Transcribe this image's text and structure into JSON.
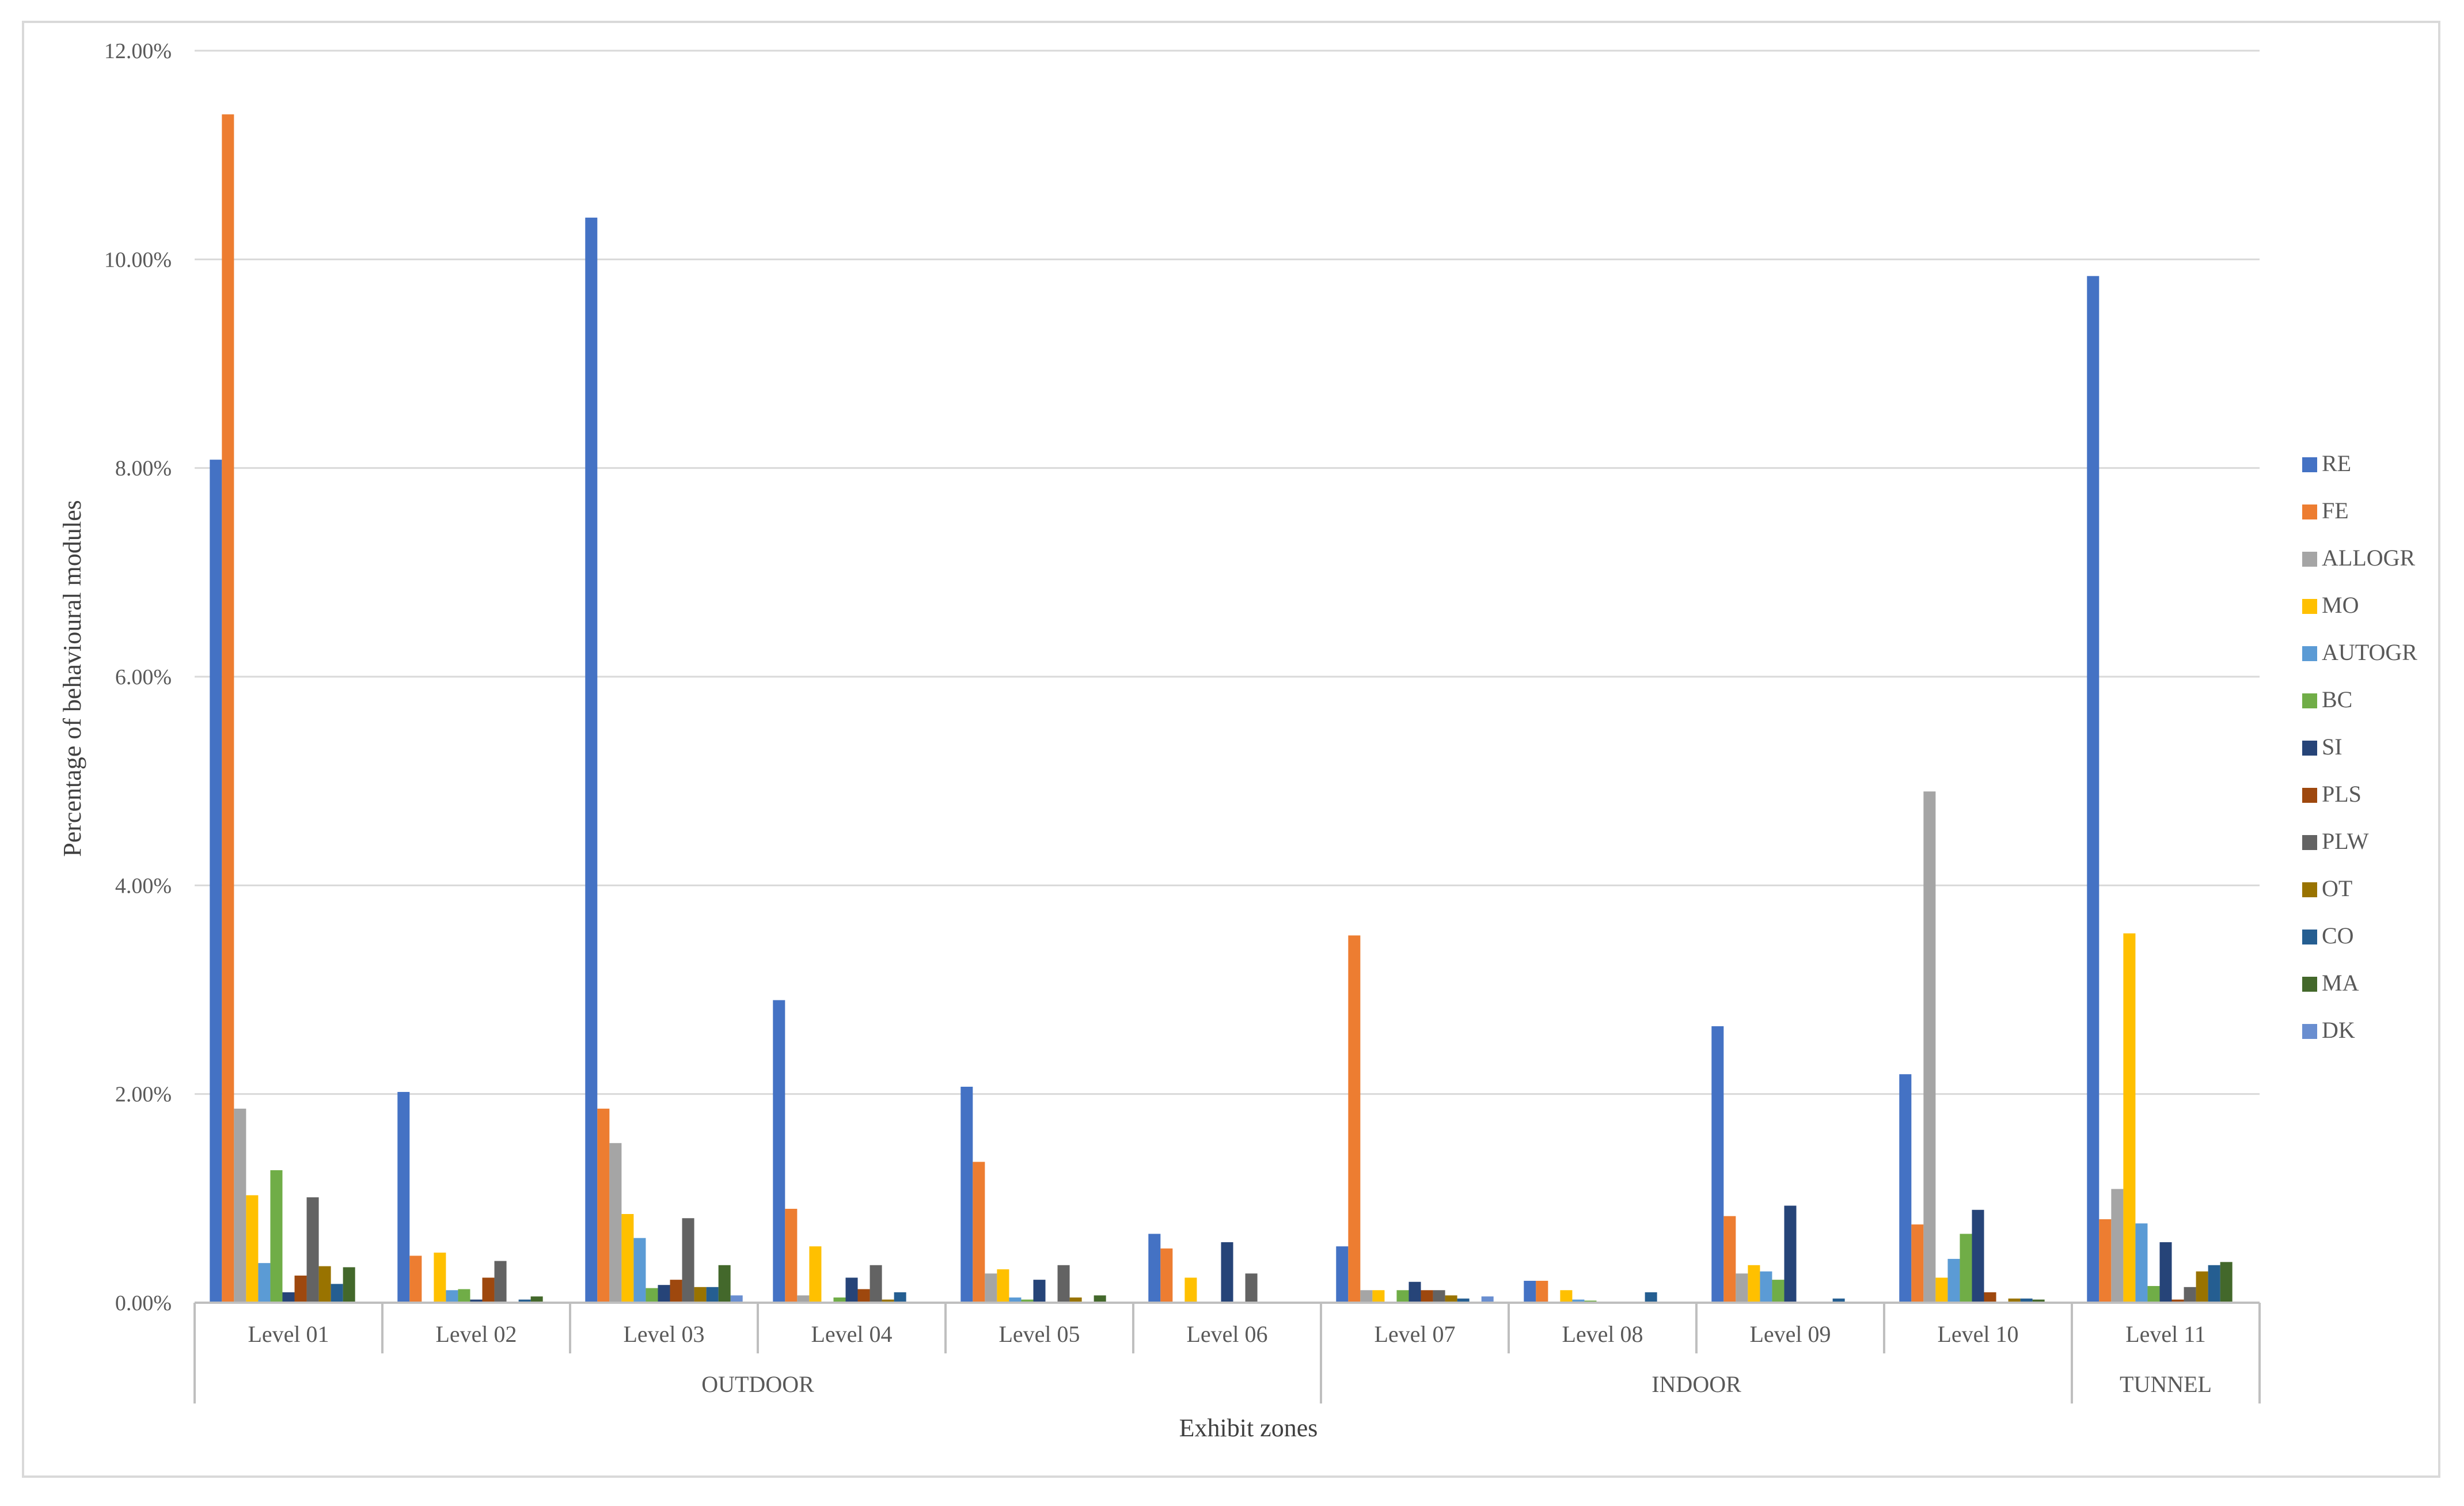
{
  "chart_data": {
    "type": "bar",
    "xlabel": "Exhibit zones",
    "ylabel": "Percentage of behavioural modules",
    "ylim": [
      0,
      12
    ],
    "yticks": [
      "0.00%",
      "2.00%",
      "4.00%",
      "6.00%",
      "8.00%",
      "10.00%",
      "12.00%"
    ],
    "grid": true,
    "legend_position": "right",
    "categories": [
      "Level 01",
      "Level 02",
      "Level 03",
      "Level 04",
      "Level 05",
      "Level 06",
      "Level 07",
      "Level 08",
      "Level 09",
      "Level 10",
      "Level 11"
    ],
    "groups": [
      {
        "label": "OUTDOOR",
        "levels": 6
      },
      {
        "label": "INDOOR",
        "levels": 4
      },
      {
        "label": "TUNNEL",
        "levels": 1
      }
    ],
    "series": [
      {
        "name": "RE",
        "color": "#4472C4",
        "values": [
          8.08,
          2.02,
          10.4,
          2.9,
          2.07,
          0.66,
          0.54,
          0.21,
          2.65,
          2.19,
          9.84
        ]
      },
      {
        "name": "FE",
        "color": "#ED7D31",
        "values": [
          11.39,
          0.45,
          1.86,
          0.9,
          1.35,
          0.52,
          3.52,
          0.21,
          0.83,
          0.75,
          0.8
        ]
      },
      {
        "name": "ALLOGR",
        "color": "#A5A5A5",
        "values": [
          1.86,
          0.0,
          1.53,
          0.07,
          0.28,
          0.0,
          0.12,
          0.0,
          0.28,
          4.9,
          1.09
        ]
      },
      {
        "name": "MO",
        "color": "#FFC000",
        "values": [
          1.03,
          0.48,
          0.85,
          0.54,
          0.32,
          0.24,
          0.12,
          0.12,
          0.36,
          0.24,
          3.54
        ]
      },
      {
        "name": "AUTOGR",
        "color": "#5B9BD5",
        "values": [
          0.38,
          0.12,
          0.62,
          0.0,
          0.05,
          0.0,
          0.0,
          0.03,
          0.3,
          0.42,
          0.76
        ]
      },
      {
        "name": "BC",
        "color": "#70AD47",
        "values": [
          1.27,
          0.13,
          0.14,
          0.05,
          0.03,
          0.0,
          0.12,
          0.02,
          0.22,
          0.66,
          0.16
        ]
      },
      {
        "name": "SI",
        "color": "#264478",
        "values": [
          0.1,
          0.03,
          0.17,
          0.24,
          0.22,
          0.58,
          0.2,
          0.0,
          0.93,
          0.89,
          0.58
        ]
      },
      {
        "name": "PLS",
        "color": "#9E480E",
        "values": [
          0.26,
          0.24,
          0.22,
          0.13,
          0.0,
          0.0,
          0.12,
          0.0,
          0.0,
          0.1,
          0.03
        ]
      },
      {
        "name": "PLW",
        "color": "#636363",
        "values": [
          1.01,
          0.4,
          0.81,
          0.36,
          0.36,
          0.28,
          0.12,
          0.0,
          0.0,
          0.0,
          0.15
        ]
      },
      {
        "name": "OT",
        "color": "#997300",
        "values": [
          0.35,
          0.0,
          0.15,
          0.03,
          0.05,
          0.0,
          0.07,
          0.0,
          0.0,
          0.04,
          0.3
        ]
      },
      {
        "name": "CO",
        "color": "#255E91",
        "values": [
          0.18,
          0.03,
          0.15,
          0.1,
          0.0,
          0.0,
          0.04,
          0.1,
          0.04,
          0.04,
          0.36
        ]
      },
      {
        "name": "MA",
        "color": "#43682B",
        "values": [
          0.34,
          0.06,
          0.36,
          0.0,
          0.07,
          0.0,
          0.0,
          0.0,
          0.0,
          0.03,
          0.39
        ]
      },
      {
        "name": "DK",
        "color": "#698ED0",
        "values": [
          0.0,
          0.0,
          0.07,
          0.0,
          0.0,
          0.0,
          0.06,
          0.0,
          0.0,
          0.0,
          0.0
        ]
      }
    ]
  }
}
